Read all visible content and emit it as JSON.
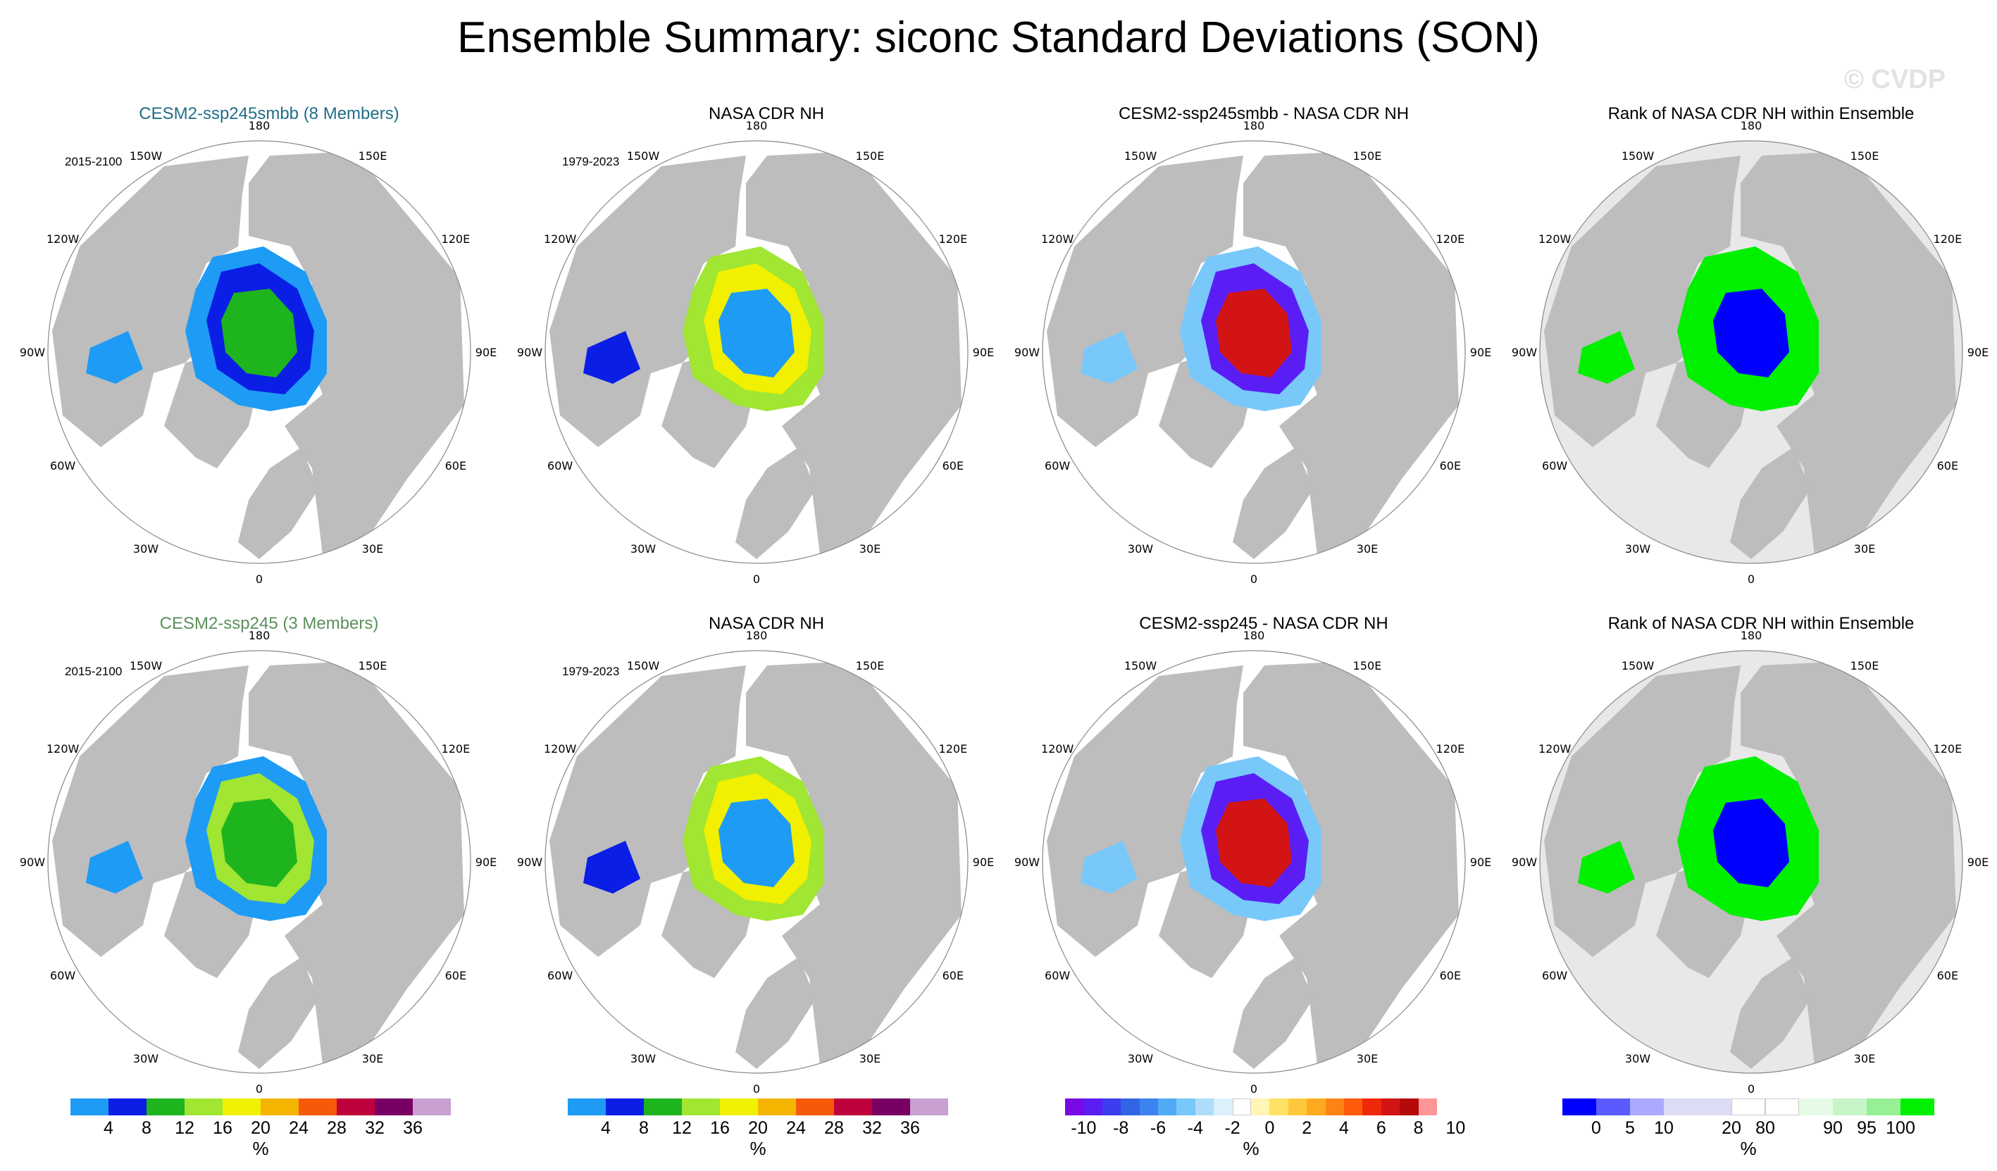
{
  "title": "Ensemble Summary: siconc Standard Deviations (SON)",
  "watermark": "© CVDP",
  "lon_labels": [
    "180",
    "150E",
    "120E",
    "90E",
    "60E",
    "30E",
    "0",
    "30W",
    "60W",
    "90W",
    "120W",
    "150W"
  ],
  "panels": [
    {
      "id": "r1c1",
      "title": "CESM2-ssp245smbb (8 Members)",
      "title_color": "#1f6e87",
      "years": "2015-2100",
      "kind": "std",
      "variant": "model8"
    },
    {
      "id": "r1c2",
      "title": "NASA CDR NH",
      "title_color": "#000000",
      "years": "1979-2023",
      "kind": "std",
      "variant": "obs"
    },
    {
      "id": "r1c3",
      "title": "CESM2-ssp245smbb - NASA CDR NH",
      "title_color": "#000000",
      "years": "",
      "kind": "diff",
      "variant": "diff8"
    },
    {
      "id": "r1c4",
      "title": "Rank of NASA CDR NH within Ensemble",
      "title_color": "#000000",
      "years": "",
      "kind": "rank",
      "variant": "rank8"
    },
    {
      "id": "r2c1",
      "title": "CESM2-ssp245 (3 Members)",
      "title_color": "#5c8f5c",
      "years": "2015-2100",
      "kind": "std",
      "variant": "model3"
    },
    {
      "id": "r2c2",
      "title": "NASA CDR NH",
      "title_color": "#000000",
      "years": "1979-2023",
      "kind": "std",
      "variant": "obs"
    },
    {
      "id": "r2c3",
      "title": "CESM2-ssp245 - NASA CDR NH",
      "title_color": "#000000",
      "years": "",
      "kind": "diff",
      "variant": "diff3"
    },
    {
      "id": "r2c4",
      "title": "Rank of NASA CDR NH within Ensemble",
      "title_color": "#000000",
      "years": "",
      "kind": "rank",
      "variant": "rank3"
    }
  ],
  "colorbars": {
    "std": {
      "unit": "%",
      "colors": [
        "#1e9bf5",
        "#0a1ee6",
        "#1eb41e",
        "#a0e632",
        "#f0f000",
        "#f5b400",
        "#f55a0a",
        "#be003c",
        "#780064",
        "#c8a0d2"
      ],
      "ticks": [
        "4",
        "8",
        "12",
        "16",
        "20",
        "24",
        "28",
        "32",
        "36"
      ]
    },
    "diff": {
      "unit": "%",
      "colors": [
        "#780ae6",
        "#5a1ef5",
        "#3c3cf0",
        "#3264e6",
        "#3c82f0",
        "#50aaf5",
        "#78c8fa",
        "#afdcfa",
        "#dcf0fa",
        "#ffffff",
        "#fff5b4",
        "#ffe164",
        "#ffc83c",
        "#ffaa1e",
        "#ff8214",
        "#ff5a0a",
        "#f0280a",
        "#d21414",
        "#b40a0a",
        "#ff9696"
      ],
      "ticks": [
        "-10",
        "-8",
        "-6",
        "-4",
        "-2",
        "0",
        "2",
        "4",
        "6",
        "8",
        "10"
      ]
    },
    "rank": {
      "unit": "%",
      "colors": [
        "#0000ff",
        "#5a5aff",
        "#aaaaff",
        "#dcdcf5",
        "#dcdcf5",
        "#ffffff",
        "#ffffff",
        "#e6fae6",
        "#c8f5c8",
        "#96f096",
        "#00f000"
      ],
      "ticks": [
        "0",
        "5",
        "10",
        "20",
        "80",
        "90",
        "95",
        "100"
      ]
    }
  },
  "colors": {
    "land": "#bdbdbd",
    "ocean": "#ffffff",
    "outline": "#888888",
    "rank_bg": "#e8e8e8"
  }
}
